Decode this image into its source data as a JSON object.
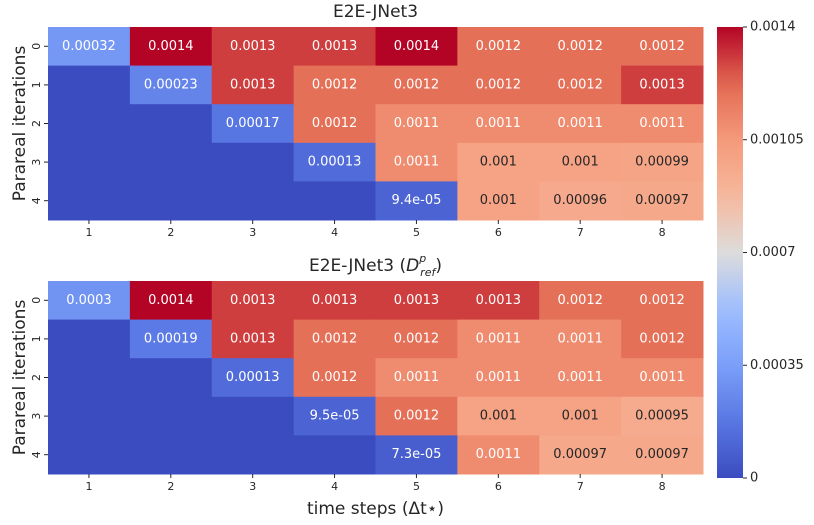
{
  "chart_data": [
    {
      "type": "heatmap",
      "title_parts": {
        "text": "E2E-JNet3"
      },
      "ylabel": "Parareal iterations",
      "categories": [
        "1",
        "2",
        "3",
        "4",
        "5",
        "6",
        "7",
        "8"
      ],
      "y_categories": [
        "0",
        "1",
        "2",
        "3",
        "4"
      ],
      "values": [
        [
          0.00032,
          0.0014,
          0.0013,
          0.0013,
          0.0014,
          0.0012,
          0.0012,
          0.0012
        ],
        [
          0,
          0.00023,
          0.0013,
          0.0012,
          0.0012,
          0.0012,
          0.0012,
          0.0013
        ],
        [
          0,
          0,
          0.00017,
          0.0012,
          0.0011,
          0.0011,
          0.0011,
          0.0011
        ],
        [
          0,
          0,
          0,
          0.00013,
          0.0011,
          0.001,
          0.001,
          0.00099
        ],
        [
          0,
          0,
          0,
          0,
          9.4e-05,
          0.001,
          0.00096,
          0.00097
        ]
      ],
      "value_labels": [
        [
          "0.00032",
          "0.0014",
          "0.0013",
          "0.0013",
          "0.0014",
          "0.0012",
          "0.0012",
          "0.0012"
        ],
        [
          null,
          "0.00023",
          "0.0013",
          "0.0012",
          "0.0012",
          "0.0012",
          "0.0012",
          "0.0013"
        ],
        [
          null,
          null,
          "0.00017",
          "0.0012",
          "0.0011",
          "0.0011",
          "0.0011",
          "0.0011"
        ],
        [
          null,
          null,
          null,
          "0.00013",
          "0.0011",
          "0.001",
          "0.001",
          "0.00099"
        ],
        [
          null,
          null,
          null,
          null,
          "9.4e-05",
          "0.001",
          "0.00096",
          "0.00097"
        ]
      ]
    },
    {
      "type": "heatmap",
      "title_parts": {
        "text": "E2E-JNet3 (",
        "math": "D",
        "sup": "p",
        "sub": "ref",
        "close": ")"
      },
      "ylabel": "Parareal iterations",
      "xlabel": "time steps (Δt⋆)",
      "categories": [
        "1",
        "2",
        "3",
        "4",
        "5",
        "6",
        "7",
        "8"
      ],
      "y_categories": [
        "0",
        "1",
        "2",
        "3",
        "4"
      ],
      "values": [
        [
          0.0003,
          0.0014,
          0.0013,
          0.0013,
          0.0013,
          0.0013,
          0.0012,
          0.0012
        ],
        [
          0,
          0.00019,
          0.0013,
          0.0012,
          0.0012,
          0.0011,
          0.0011,
          0.0012
        ],
        [
          0,
          0,
          0.00013,
          0.0012,
          0.0011,
          0.0011,
          0.0011,
          0.0011
        ],
        [
          0,
          0,
          0,
          9.5e-05,
          0.0012,
          0.001,
          0.001,
          0.00095
        ],
        [
          0,
          0,
          0,
          0,
          7.3e-05,
          0.0011,
          0.00097,
          0.00097
        ]
      ],
      "value_labels": [
        [
          "0.0003",
          "0.0014",
          "0.0013",
          "0.0013",
          "0.0013",
          "0.0013",
          "0.0012",
          "0.0012"
        ],
        [
          null,
          "0.00019",
          "0.0013",
          "0.0012",
          "0.0012",
          "0.0011",
          "0.0011",
          "0.0012"
        ],
        [
          null,
          null,
          "0.00013",
          "0.0012",
          "0.0011",
          "0.0011",
          "0.0011",
          "0.0011"
        ],
        [
          null,
          null,
          null,
          "9.5e-05",
          "0.0012",
          "0.001",
          "0.001",
          "0.00095"
        ],
        [
          null,
          null,
          null,
          null,
          "7.3e-05",
          "0.0011",
          "0.00097",
          "0.00097"
        ]
      ]
    }
  ],
  "colorbar": {
    "colormap": "coolwarm",
    "lim": [
      0,
      0.0014
    ],
    "ticks": [
      0,
      0.00035,
      0.0007,
      0.00105,
      0.0014
    ]
  }
}
